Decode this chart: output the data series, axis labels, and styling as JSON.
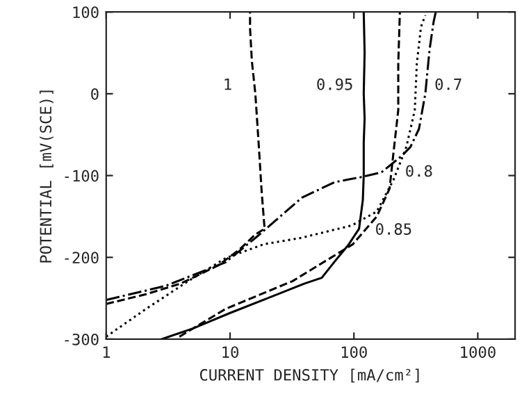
{
  "chart_data": {
    "type": "line",
    "xlabel": "CURRENT DENSITY [mA/cm²]",
    "ylabel": "POTENTIAL [mV(SCE)]",
    "log": "x",
    "xlim": [
      1,
      2000
    ],
    "xticks": [
      1,
      10,
      100,
      1000
    ],
    "ylim": [
      -300,
      100
    ],
    "yticks": [
      -300,
      -200,
      -100,
      0,
      100
    ],
    "grid": false,
    "series": [
      {
        "color": "#000000",
        "line_style": "dashed",
        "x": [
          1,
          2.1,
          4,
          8,
          12,
          16,
          19,
          18,
          17,
          16,
          15,
          14.5,
          14.5
        ],
        "values": [
          -257,
          -245,
          -232,
          -210,
          -190,
          -172,
          -165,
          -120,
          -60,
          0,
          40,
          80,
          100
        ]
      },
      {
        "color": "#000000",
        "line_style": "solid",
        "x": [
          2.8,
          5,
          10,
          20,
          40,
          55,
          70,
          90,
          110,
          118,
          120,
          120,
          122,
          120,
          122,
          120
        ],
        "values": [
          -300,
          -287,
          -268,
          -250,
          -232,
          -225,
          -205,
          -185,
          -165,
          -130,
          -100,
          -60,
          -30,
          0,
          50,
          100
        ]
      },
      {
        "color": "#000000",
        "line_style": "dashdot",
        "x": [
          1,
          3,
          9.2,
          17,
          38,
          70,
          113,
          167,
          243,
          286,
          335,
          377,
          408,
          440,
          458
        ],
        "values": [
          -252,
          -235,
          -206,
          -173,
          -127,
          -108,
          -102,
          -96,
          -76,
          -65,
          -43,
          0,
          54,
          88,
          100
        ]
      },
      {
        "color": "#000000",
        "line_style": "dashed",
        "x": [
          3.9,
          9.2,
          32,
          98,
          153,
          194,
          209,
          228,
          228,
          235
        ],
        "values": [
          -297,
          -263,
          -229,
          -184,
          -150,
          -116,
          -71,
          -20,
          37,
          100
        ]
      },
      {
        "color": "#000000",
        "line_style": "dotted",
        "x": [
          1,
          2.1,
          4.6,
          9.2,
          18.7,
          38,
          96,
          153,
          209,
          265,
          310,
          322,
          348,
          377
        ],
        "values": [
          -297,
          -263,
          -229,
          -201,
          -184,
          -176,
          -161,
          -144,
          -105,
          -65,
          -20,
          37,
          82,
          96
        ]
      }
    ],
    "annotations": [
      "1",
      "0.95",
      "0.7",
      "0.8",
      "0.85"
    ]
  }
}
